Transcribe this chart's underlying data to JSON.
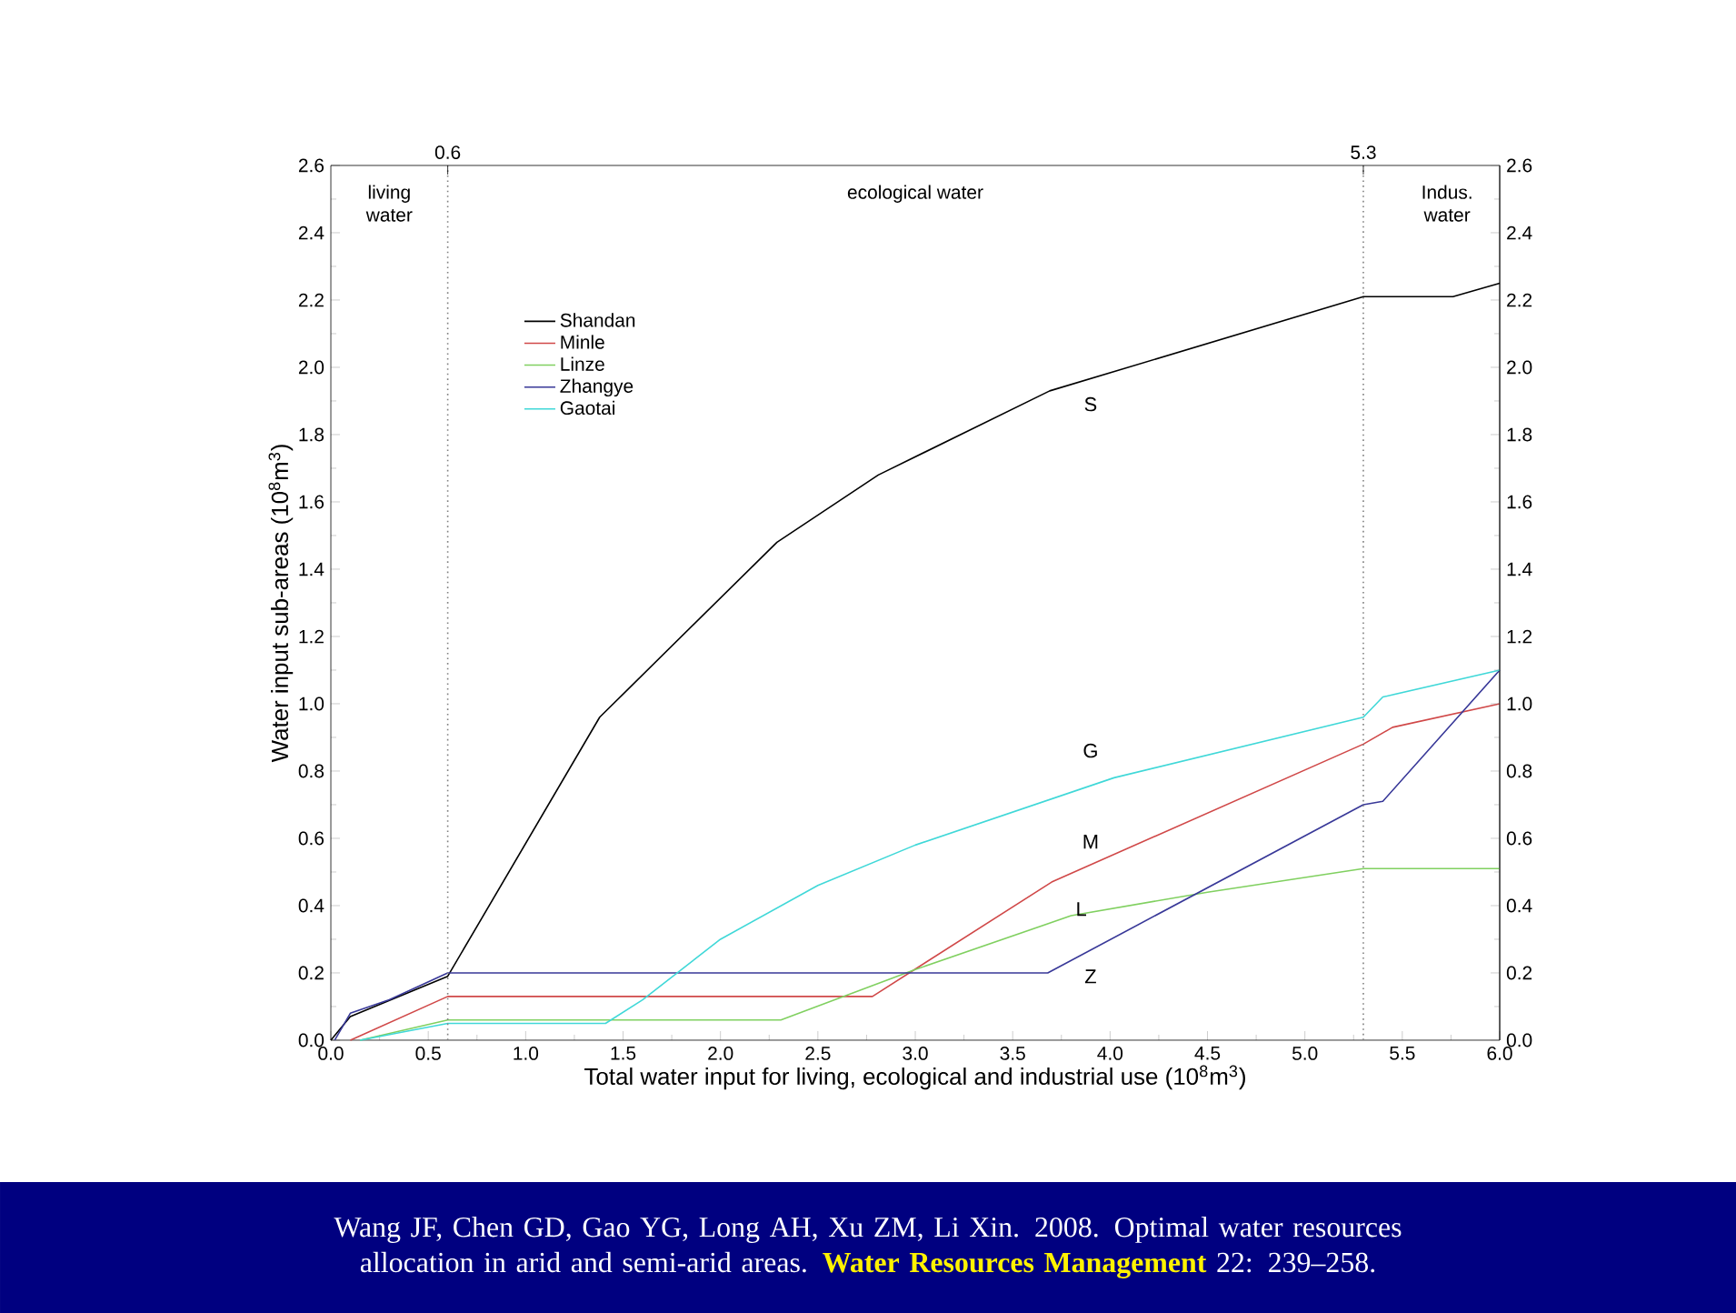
{
  "chart_data": {
    "type": "line",
    "xlabel": "Total water input for living, ecological and industrial use (10$^{8}$m$^{3}$)",
    "ylabel": "Water input sub-areas (10$^{8}$m$^{3}$)",
    "xlim": [
      0,
      6
    ],
    "ylim": [
      0,
      2.6
    ],
    "y2lim": [
      0,
      2.6
    ],
    "xticks": [
      {
        "value": 0,
        "label": "0.0"
      },
      0.5,
      {
        "value": 1,
        "label": "1.0"
      },
      1.5,
      {
        "value": 2,
        "label": "2.0"
      },
      2.5,
      {
        "value": 3,
        "label": "3.0"
      },
      3.5,
      {
        "value": 4,
        "label": "4.0"
      },
      4.5,
      {
        "value": 5,
        "label": "5.0"
      },
      5.5,
      {
        "value": 6,
        "label": "6.0"
      }
    ],
    "yticks": [
      {
        "value": 0,
        "label": "0.0"
      },
      0.2,
      0.4,
      0.6,
      0.8,
      {
        "value": 1,
        "label": "1.0"
      },
      1.2,
      1.4,
      1.6,
      1.8,
      {
        "value": 2,
        "label": "2.0"
      },
      2.2,
      2.4,
      2.6
    ],
    "y2ticks": [
      {
        "value": 0,
        "label": "0.0"
      },
      0.2,
      0.4,
      0.6,
      0.8,
      {
        "value": 1,
        "label": "1.0"
      },
      1.2,
      1.4,
      1.6,
      1.8,
      {
        "value": 2,
        "label": "2.0"
      },
      2.2,
      2.4,
      2.6
    ],
    "grid": false,
    "legend": "top left",
    "marker": "none",
    "line_style": "solid",
    "series": [
      {
        "name": "Shandan",
        "color": "#000000",
        "x": [
          0,
          0.1,
          0.6,
          1.38,
          2.29,
          2.81,
          3.69,
          5.3,
          5.76,
          6
        ],
        "values": [
          0,
          0.07,
          0.19,
          0.96,
          1.48,
          1.68,
          1.93,
          2.21,
          2.21,
          2.25
        ]
      },
      {
        "name": "Minle",
        "color": "#d04848",
        "x": [
          0.1,
          0.6,
          2.78,
          3.7,
          5.3,
          5.45,
          6
        ],
        "values": [
          0,
          0.13,
          0.13,
          0.47,
          0.88,
          0.93,
          1.0
        ]
      },
      {
        "name": "Linze",
        "color": "#80d060",
        "x": [
          0.15,
          0.6,
          2.31,
          3.0,
          3.8,
          4.5,
          5.3,
          6
        ],
        "values": [
          0,
          0.06,
          0.06,
          0.21,
          0.37,
          0.44,
          0.51,
          0.51
        ]
      },
      {
        "name": "Zhangye",
        "color": "#383898",
        "x": [
          0.02,
          0.1,
          0.3,
          0.6,
          3.68,
          5.3,
          5.4,
          6
        ],
        "values": [
          0,
          0.08,
          0.12,
          0.2,
          0.2,
          0.7,
          0.71,
          1.1
        ]
      },
      {
        "name": "Gaotai",
        "color": "#40d8d8",
        "x": [
          0.15,
          0.6,
          1.41,
          1.6,
          2.0,
          2.5,
          3.0,
          4.02,
          5.3,
          5.4,
          6
        ],
        "values": [
          0,
          0.05,
          0.05,
          0.12,
          0.3,
          0.46,
          0.58,
          0.78,
          0.96,
          1.02,
          1.1
        ]
      }
    ],
    "ref_lines": [
      {
        "axis": "x",
        "value": 0.6,
        "label": "0.6",
        "color": "#808080",
        "line_style": "dotted"
      },
      {
        "axis": "x",
        "value": 5.3,
        "label": "5.3",
        "color": "#808080",
        "line_style": "dotted"
      }
    ],
    "annotations": [
      "living water",
      "ecological water",
      "Indus. water",
      "S",
      "G",
      "M",
      "L",
      "Z",
      "Wang JF, Chen GD, Gao YG, Long AH, Xu ZM, Li Xin. 2008. Optimal water resources allocation in arid and semi-arid areas. **Water Resources Management** 22: 239–258."
    ]
  }
}
